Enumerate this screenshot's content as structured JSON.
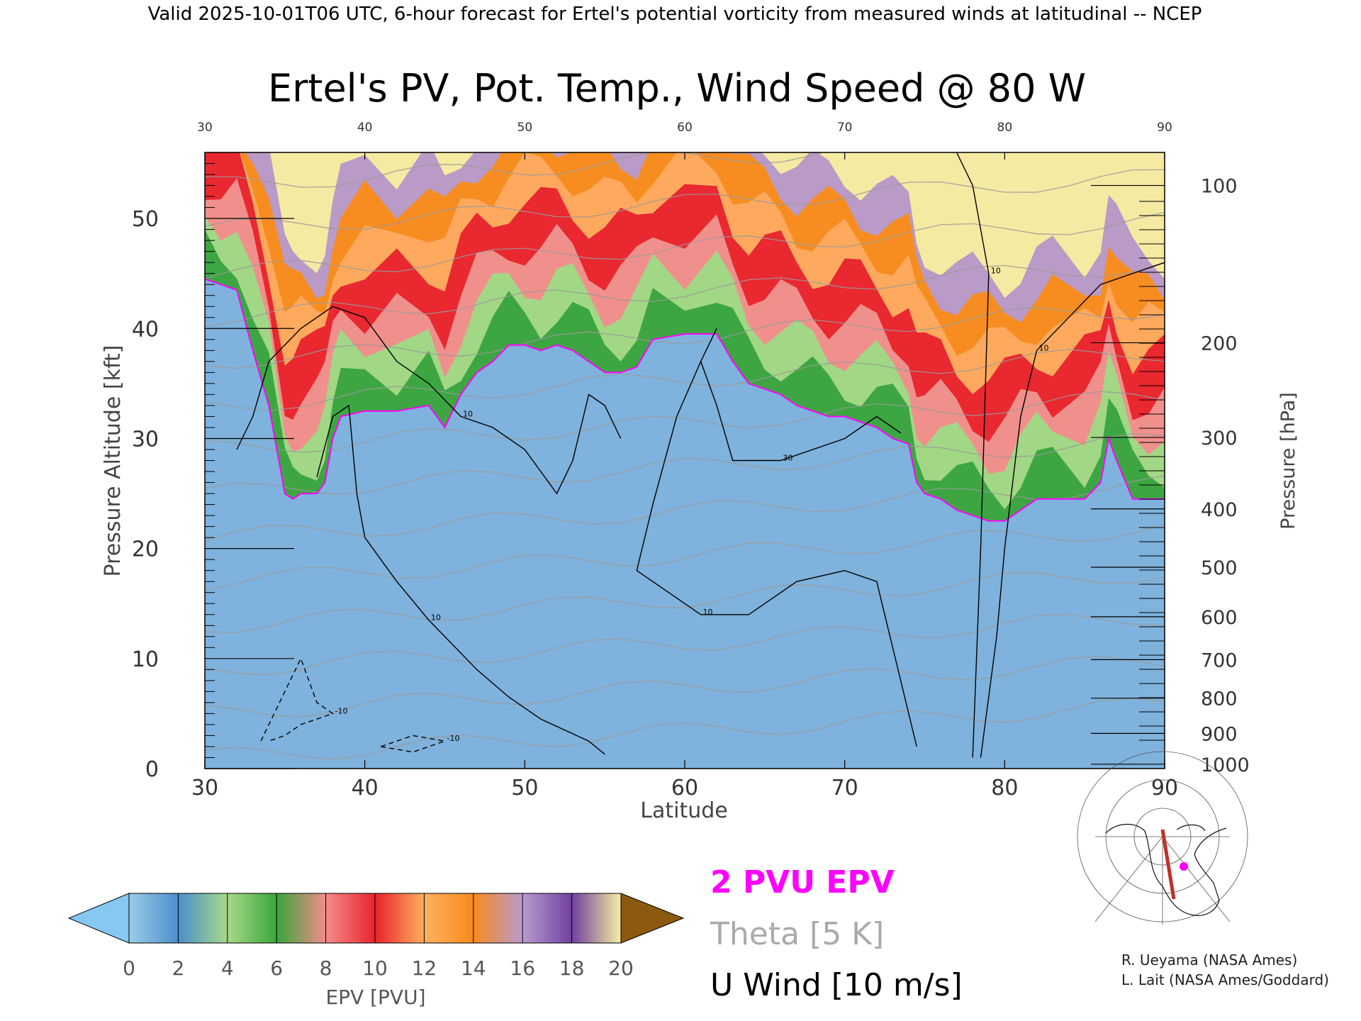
{
  "header": "Valid 2025-10-01T06 UTC, 6-hour forecast for Ertel's potential vorticity from measured winds at latitudinal -- NCEP",
  "chart_data": {
    "type": "heatmap",
    "title": "Ertel's PV, Pot. Temp., Wind Speed @ 80 W",
    "xlabel": "Latitude",
    "ylabel_left": "Pressure Altitude [kft]",
    "ylabel_right": "Pressure [hPa]",
    "xlim": [
      30,
      90
    ],
    "ylim": [
      0,
      56
    ],
    "x_ticks": [
      "30",
      "40",
      "50",
      "60",
      "70",
      "80",
      "90"
    ],
    "y_ticks": [
      "0",
      "10",
      "20",
      "30",
      "40",
      "50"
    ],
    "pressure_ticks": [
      {
        "label": "100",
        "kft": 53.0
      },
      {
        "label": "200",
        "kft": 38.7
      },
      {
        "label": "300",
        "kft": 30.1
      },
      {
        "label": "400",
        "kft": 23.6
      },
      {
        "label": "500",
        "kft": 18.3
      },
      {
        "label": "600",
        "kft": 13.8
      },
      {
        "label": "700",
        "kft": 9.9
      },
      {
        "label": "800",
        "kft": 6.4
      },
      {
        "label": "900",
        "kft": 3.2
      },
      {
        "label": "1000",
        "kft": 0.4
      }
    ],
    "pv_2pvu_line": [
      [
        30,
        44.5
      ],
      [
        31,
        44
      ],
      [
        32,
        43.5
      ],
      [
        33,
        38
      ],
      [
        34,
        33
      ],
      [
        35,
        25
      ],
      [
        35.5,
        24.5
      ],
      [
        36,
        25
      ],
      [
        37,
        25
      ],
      [
        37.5,
        26
      ],
      [
        38,
        30
      ],
      [
        38.5,
        32
      ],
      [
        40,
        32.5
      ],
      [
        42,
        32.5
      ],
      [
        44,
        33
      ],
      [
        45,
        31
      ],
      [
        46,
        34
      ],
      [
        47,
        36
      ],
      [
        48,
        37
      ],
      [
        49,
        38.5
      ],
      [
        50,
        38.5
      ],
      [
        51,
        38
      ],
      [
        52,
        38.5
      ],
      [
        53,
        38
      ],
      [
        54,
        37
      ],
      [
        55,
        36
      ],
      [
        56,
        36
      ],
      [
        57,
        36.5
      ],
      [
        58,
        39
      ],
      [
        60,
        39.5
      ],
      [
        62,
        39.5
      ],
      [
        63,
        37
      ],
      [
        64,
        35
      ],
      [
        65,
        34.5
      ],
      [
        66,
        34
      ],
      [
        67,
        33
      ],
      [
        68,
        32.5
      ],
      [
        69,
        32
      ],
      [
        70,
        32
      ],
      [
        71,
        31.5
      ],
      [
        72,
        31
      ],
      [
        73,
        30
      ],
      [
        74,
        29.5
      ],
      [
        74.5,
        26
      ],
      [
        75,
        25
      ],
      [
        76,
        24.5
      ],
      [
        77,
        23.5
      ],
      [
        78,
        23
      ],
      [
        79,
        22.5
      ],
      [
        80,
        22.5
      ],
      [
        81,
        23.5
      ],
      [
        82,
        24.5
      ],
      [
        83,
        24.5
      ],
      [
        85,
        24.5
      ],
      [
        86,
        26
      ],
      [
        86.5,
        30
      ],
      [
        87,
        28
      ],
      [
        88,
        24.5
      ],
      [
        89,
        24.5
      ],
      [
        90,
        24.5
      ]
    ],
    "theta_levels_K": [
      290,
      300,
      310,
      320,
      330,
      340,
      350,
      360,
      370,
      380,
      400,
      420,
      450,
      500
    ],
    "u_wind_contours": [
      {
        "label": "10",
        "points": [
          [
            37,
            26.5
          ],
          [
            38,
            32
          ],
          [
            39,
            33
          ],
          [
            39.5,
            25
          ],
          [
            40,
            21
          ],
          [
            42,
            17
          ],
          [
            44,
            13.5
          ],
          [
            47,
            9
          ],
          [
            49,
            6.5
          ],
          [
            51,
            4.5
          ],
          [
            54,
            2.5
          ],
          [
            55,
            1.3
          ]
        ]
      },
      {
        "label": "10",
        "points": [
          [
            32,
            29
          ],
          [
            33,
            32
          ],
          [
            34,
            37
          ],
          [
            36,
            40
          ],
          [
            38,
            42
          ],
          [
            40,
            41
          ],
          [
            42,
            37
          ],
          [
            44,
            35
          ],
          [
            46,
            32
          ],
          [
            48,
            31
          ],
          [
            50,
            29
          ],
          [
            52,
            25
          ],
          [
            53,
            28
          ],
          [
            54,
            34
          ],
          [
            55,
            33
          ],
          [
            56,
            30
          ]
        ]
      },
      {
        "label": "10",
        "points": [
          [
            62,
            40
          ],
          [
            61,
            37
          ],
          [
            59.5,
            32
          ],
          [
            58,
            24
          ],
          [
            57,
            18
          ],
          [
            59,
            16
          ],
          [
            61,
            14
          ],
          [
            64,
            14
          ],
          [
            67,
            17
          ],
          [
            70,
            18
          ],
          [
            72,
            17
          ],
          [
            74,
            5
          ],
          [
            74.5,
            2
          ]
        ]
      },
      {
        "label": "30",
        "points": [
          [
            61,
            37
          ],
          [
            62,
            33
          ],
          [
            63,
            28
          ],
          [
            66,
            28
          ],
          [
            70,
            30
          ],
          [
            72,
            32
          ],
          [
            73.5,
            30.5
          ]
        ]
      },
      {
        "label": "10",
        "points": [
          [
            78,
            1
          ],
          [
            78.5,
            20
          ],
          [
            79,
            45
          ],
          [
            78,
            53
          ],
          [
            77,
            56
          ]
        ]
      },
      {
        "label": "10",
        "points": [
          [
            78.5,
            1
          ],
          [
            79.5,
            12
          ],
          [
            80,
            20
          ],
          [
            81,
            32
          ],
          [
            82,
            38
          ],
          [
            84,
            41
          ],
          [
            86,
            44
          ],
          [
            88,
            45
          ],
          [
            90,
            46
          ]
        ]
      },
      {
        "label": "-10",
        "points": [
          [
            33.5,
            2.5
          ],
          [
            35,
            7
          ],
          [
            36,
            10
          ],
          [
            37,
            6
          ],
          [
            38,
            5
          ],
          [
            36,
            4
          ],
          [
            35,
            3
          ],
          [
            34,
            2.5
          ]
        ]
      },
      {
        "label": "-10",
        "points": [
          [
            41,
            2
          ],
          [
            43,
            3
          ],
          [
            45,
            2.5
          ],
          [
            43,
            1.5
          ],
          [
            41,
            2
          ]
        ]
      }
    ],
    "colorbar": {
      "label": "EPV [PVU]",
      "ticks": [
        "0",
        "2",
        "4",
        "6",
        "8",
        "10",
        "12",
        "14",
        "16",
        "18",
        "20"
      ],
      "colors": [
        "#9ccbe8",
        "#4b8fcb",
        "#a8d98a",
        "#3aa53a",
        "#f48c8c",
        "#e8232b",
        "#ffb060",
        "#f78b1c",
        "#b69bd0",
        "#7040a0",
        "#f8eea0",
        "#8b5a10"
      ],
      "under_color": "#86c8f2",
      "over_color": "#8b5a10"
    }
  },
  "legend": {
    "pv": "2 PVU EPV",
    "theta": "Theta [5 K]",
    "wind": "U Wind [10 m/s]",
    "pv_color": "#ff00ff",
    "theta_color": "#aaaaaa",
    "wind_color": "#000000"
  },
  "credits": [
    "R. Ueyama (NASA Ames)",
    "L. Lait (NASA Ames/Goddard)"
  ]
}
